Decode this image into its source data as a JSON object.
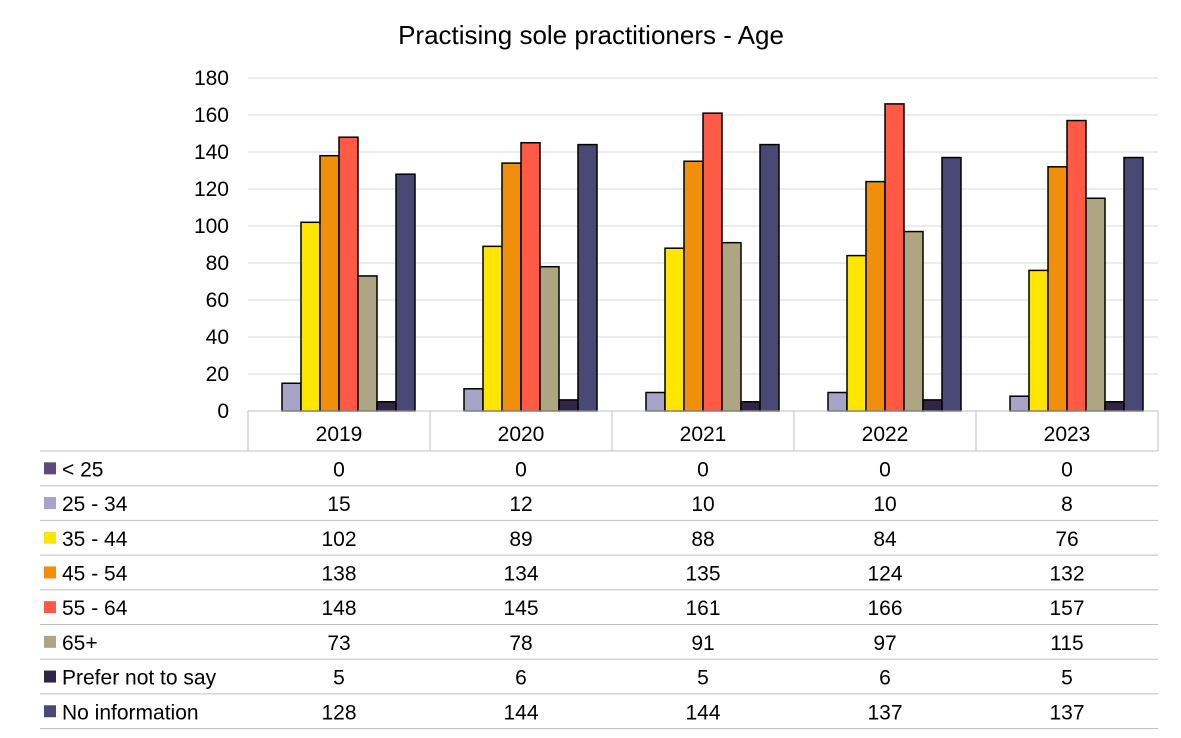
{
  "chart_data": {
    "type": "bar",
    "title": "Practising sole practitioners - Age",
    "xlabel": "",
    "ylabel": "",
    "ylim": [
      0,
      180
    ],
    "yticks": [
      0,
      20,
      40,
      60,
      80,
      100,
      120,
      140,
      160,
      180
    ],
    "grid": true,
    "legend": "data-table-below",
    "categories": [
      "2019",
      "2020",
      "2021",
      "2022",
      "2023"
    ],
    "series": [
      {
        "name": "< 25",
        "color": "#5f497a",
        "values": [
          0,
          0,
          0,
          0,
          0
        ]
      },
      {
        "name": "25 - 34",
        "color": "#a8a4c8",
        "values": [
          15,
          12,
          10,
          10,
          8
        ]
      },
      {
        "name": "35 - 44",
        "color": "#ffe600",
        "values": [
          102,
          89,
          88,
          84,
          76
        ]
      },
      {
        "name": "45 - 54",
        "color": "#f0900a",
        "values": [
          138,
          134,
          135,
          124,
          132
        ]
      },
      {
        "name": "55 - 64",
        "color": "#ff5a46",
        "values": [
          148,
          145,
          161,
          166,
          157
        ]
      },
      {
        "name": "65+",
        "color": "#aea583",
        "values": [
          73,
          78,
          91,
          97,
          115
        ]
      },
      {
        "name": "Prefer not to say",
        "color": "#2e2642",
        "values": [
          5,
          6,
          5,
          6,
          5
        ]
      },
      {
        "name": "No information",
        "color": "#4a4874",
        "values": [
          128,
          144,
          144,
          137,
          137
        ]
      }
    ]
  }
}
